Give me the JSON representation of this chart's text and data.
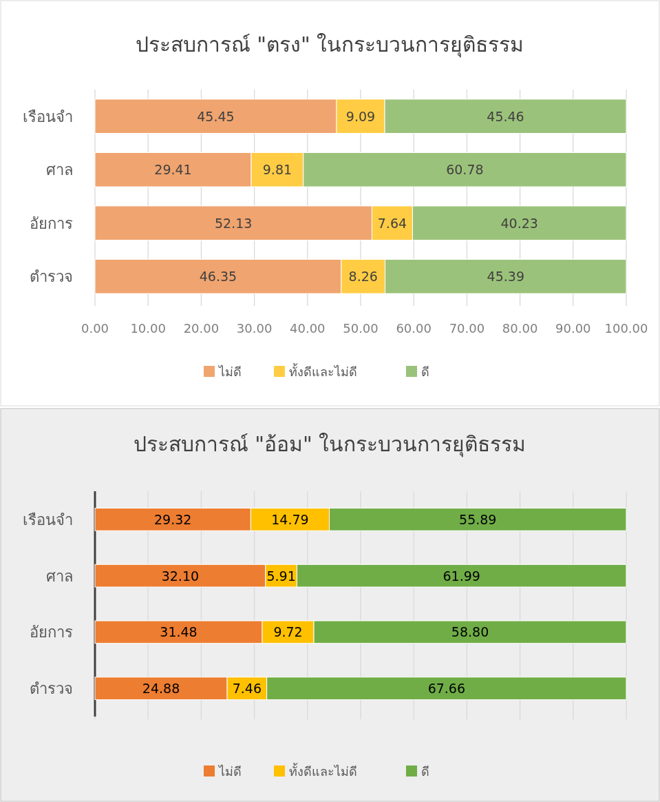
{
  "chart_data": [
    {
      "type": "bar",
      "orientation": "horizontal",
      "stacked": true,
      "title": "ประสบการณ์ \"ตรง\" ในกระบวนการยุติธรรม",
      "categories": [
        "เรือนจำ",
        "ศาล",
        "อัยการ",
        "ตำรวจ"
      ],
      "xlim": [
        0,
        100
      ],
      "xticks": [
        {
          "value": 0,
          "label": "0.00"
        },
        {
          "value": 10,
          "label": "10.00"
        },
        {
          "value": 20,
          "label": "20.00"
        },
        {
          "value": 30,
          "label": "30.00"
        },
        {
          "value": 40,
          "label": "40.00"
        },
        {
          "value": 50,
          "label": "50.00"
        },
        {
          "value": 60,
          "label": "60.00"
        },
        {
          "value": 70,
          "label": "70.00"
        },
        {
          "value": 80,
          "label": "80.00"
        },
        {
          "value": 90,
          "label": "90.00"
        },
        {
          "value": 100,
          "label": "100.00"
        }
      ],
      "grid": "x",
      "legend": "bottom",
      "series": [
        {
          "name": "ไม่ดี",
          "color": "#f0a46f",
          "values": [
            45.45,
            29.41,
            52.13,
            46.35
          ],
          "value_labels": [
            "45.45",
            "29.41",
            "52.13",
            "46.35"
          ]
        },
        {
          "name": "ทั้งดีและไม่ดี",
          "color": "#ffcc44",
          "values": [
            9.09,
            9.81,
            7.64,
            8.26
          ],
          "value_labels": [
            "9.09",
            "9.81",
            "7.64",
            "8.26"
          ]
        },
        {
          "name": "ดี",
          "color": "#9bc27a",
          "values": [
            45.46,
            60.78,
            40.23,
            45.39
          ],
          "value_labels": [
            "45.46",
            "60.78",
            "40.23",
            "45.39"
          ]
        }
      ]
    },
    {
      "type": "bar",
      "orientation": "horizontal",
      "stacked": true,
      "title": "ประสบการณ์ \"อ้อม\" ในกระบวนการยุติธรรม",
      "categories": [
        "เรือนจำ",
        "ศาล",
        "อัยการ",
        "ตำรวจ"
      ],
      "xlim": [
        0,
        100
      ],
      "xticks": [
        {
          "value": 0,
          "label": null
        },
        {
          "value": 10,
          "label": null
        },
        {
          "value": 20,
          "label": null
        },
        {
          "value": 30,
          "label": null
        },
        {
          "value": 40,
          "label": null
        },
        {
          "value": 50,
          "label": null
        },
        {
          "value": 60,
          "label": null
        },
        {
          "value": 70,
          "label": null
        },
        {
          "value": 80,
          "label": null
        },
        {
          "value": 90,
          "label": null
        },
        {
          "value": 100,
          "label": null
        }
      ],
      "grid": "x",
      "legend": "bottom",
      "tick_labels": "y",
      "series": [
        {
          "name": "ไม่ดี",
          "color": "#ed7d31",
          "values": [
            29.32,
            32.1,
            31.48,
            24.88
          ],
          "value_labels": [
            "29.32",
            "32.10",
            "31.48",
            "24.88"
          ]
        },
        {
          "name": "ทั้งดีและไม่ดี",
          "color": "#ffc000",
          "values": [
            14.79,
            5.91,
            9.72,
            7.46
          ],
          "value_labels": [
            "14.79",
            "5.91",
            "9.72",
            "7.46"
          ]
        },
        {
          "name": "ดี",
          "color": "#70ad47",
          "values": [
            55.89,
            61.99,
            58.8,
            67.66
          ],
          "value_labels": [
            "55.89",
            "61.99",
            "58.80",
            "67.66"
          ]
        }
      ]
    }
  ]
}
